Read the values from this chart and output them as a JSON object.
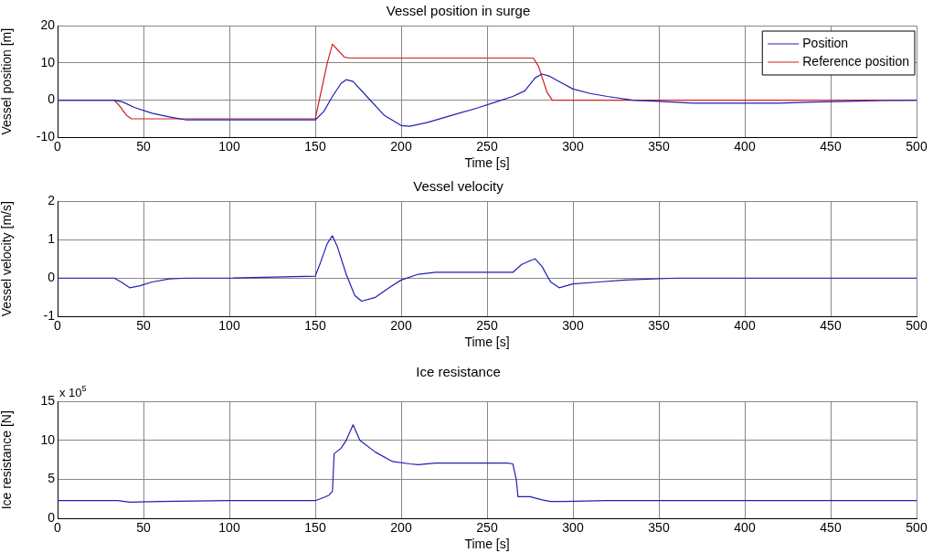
{
  "chart_data": [
    {
      "type": "line",
      "title": "Vessel position in surge",
      "xlabel": "Time [s]",
      "ylabel": "Vessel position [m]",
      "xlim": [
        0,
        500
      ],
      "xticks": [
        0,
        50,
        100,
        150,
        200,
        250,
        300,
        350,
        400,
        450,
        500
      ],
      "ylim": [
        -10,
        20
      ],
      "yticks": [
        -10,
        0,
        10,
        20
      ],
      "grid": true,
      "legend": "top right",
      "line_style": "solid",
      "marker": "none",
      "series": [
        {
          "name": "Position",
          "color": "#2020b0",
          "x": [
            0,
            33,
            38,
            45,
            55,
            65,
            75,
            100,
            150,
            155,
            160,
            165,
            168,
            172,
            180,
            190,
            200,
            205,
            215,
            230,
            245,
            255,
            265,
            272,
            278,
            282,
            286,
            292,
            300,
            310,
            320,
            335,
            350,
            370,
            420,
            440,
            460,
            480,
            500
          ],
          "values": [
            0,
            0,
            -0.5,
            -2,
            -3.5,
            -4.5,
            -5.3,
            -5.3,
            -5.3,
            -3,
            1,
            4.5,
            5.5,
            5,
            1,
            -4,
            -6.8,
            -7,
            -6,
            -4,
            -2,
            -0.5,
            1,
            2.5,
            6,
            7,
            6.5,
            5,
            3,
            1.8,
            1,
            0,
            -0.3,
            -0.8,
            -0.8,
            -0.5,
            -0.3,
            -0.1,
            0
          ]
        },
        {
          "name": "Reference position",
          "color": "#d02020",
          "x": [
            0,
            33,
            36,
            40,
            43,
            150,
            157,
            160,
            163,
            167,
            170,
            200,
            277,
            280,
            285,
            288,
            300,
            500
          ],
          "values": [
            0,
            0,
            -1.5,
            -4,
            -5,
            -5,
            10,
            15,
            13.5,
            11.5,
            11.3,
            11.3,
            11.3,
            9,
            2,
            0,
            0,
            0
          ]
        }
      ]
    },
    {
      "type": "line",
      "title": "Vessel velocity",
      "xlabel": "Time [s]",
      "ylabel": "Vessel velocity [m/s]",
      "xlim": [
        0,
        500
      ],
      "xticks": [
        0,
        50,
        100,
        150,
        200,
        250,
        300,
        350,
        400,
        450,
        500
      ],
      "ylim": [
        -1,
        2
      ],
      "yticks": [
        -1,
        0,
        1,
        2
      ],
      "grid": true,
      "line_style": "solid",
      "marker": "none",
      "series": [
        {
          "color": "#2020b0",
          "x": [
            0,
            33,
            37,
            42,
            48,
            55,
            65,
            75,
            100,
            150,
            153,
            157,
            160,
            163,
            168,
            173,
            177,
            185,
            193,
            200,
            210,
            220,
            250,
            265,
            270,
            275,
            278,
            282,
            287,
            292,
            300,
            315,
            330,
            360,
            500
          ],
          "values": [
            0,
            0,
            -0.1,
            -0.25,
            -0.2,
            -0.1,
            -0.02,
            0,
            0,
            0.05,
            0.4,
            0.9,
            1.1,
            0.8,
            0.1,
            -0.45,
            -0.6,
            -0.5,
            -0.25,
            -0.05,
            0.1,
            0.15,
            0.15,
            0.15,
            0.35,
            0.45,
            0.5,
            0.3,
            -0.1,
            -0.25,
            -0.15,
            -0.1,
            -0.05,
            0,
            0
          ]
        }
      ]
    },
    {
      "type": "line",
      "title": "Ice resistance",
      "xlabel": "Time [s]",
      "ylabel": "Ice resistance [N]",
      "annotations": [
        "x 10$^{5}$"
      ],
      "xlim": [
        0,
        500
      ],
      "xticks": [
        0,
        50,
        100,
        150,
        200,
        250,
        300,
        350,
        400,
        450,
        500
      ],
      "ylim": [
        0,
        15
      ],
      "yticks": [
        0,
        5,
        10,
        15
      ],
      "grid": true,
      "line_style": "solid",
      "marker": "none",
      "series": [
        {
          "color": "#2020b0",
          "x": [
            0,
            35,
            42,
            60,
            100,
            150,
            155,
            158,
            160,
            161,
            165,
            168,
            172,
            176,
            185,
            195,
            205,
            210,
            220,
            262,
            265,
            267,
            268,
            275,
            282,
            287,
            295,
            320,
            500
          ],
          "values": [
            2.3,
            2.3,
            2.1,
            2.2,
            2.3,
            2.3,
            2.7,
            3,
            3.5,
            8.3,
            9,
            10,
            12,
            10,
            8.5,
            7.3,
            7,
            6.9,
            7.1,
            7.1,
            7,
            5,
            2.8,
            2.8,
            2.4,
            2.2,
            2.2,
            2.3,
            2.3
          ]
        }
      ]
    }
  ]
}
